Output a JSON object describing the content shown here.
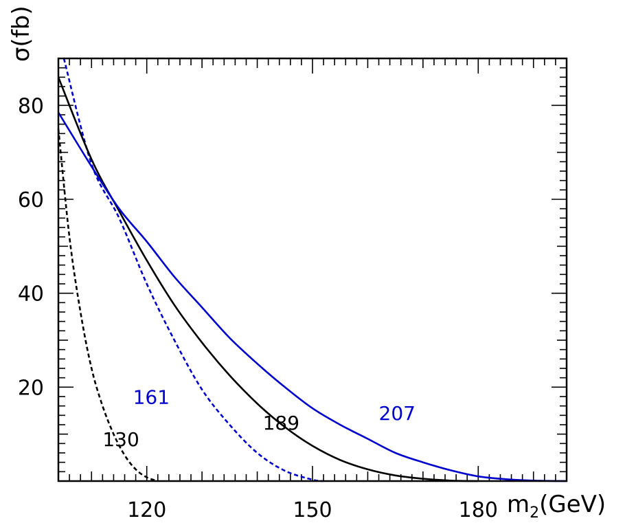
{
  "chart_data": {
    "type": "line",
    "xlabel_main": "m",
    "xlabel_sub": "2",
    "xlabel_unit": "(GeV)",
    "ylabel": "σ(fb)",
    "xlim": [
      104,
      196
    ],
    "ylim": [
      0,
      90
    ],
    "x_ticks": [
      120,
      150,
      180
    ],
    "y_ticks": [
      20,
      40,
      60,
      80
    ],
    "grid": false,
    "series": [
      {
        "label": "130",
        "color": "#000000",
        "dashed": true,
        "x": [
          104,
          106,
          108,
          110,
          112,
          114,
          116,
          118,
          120,
          122
        ],
        "y": [
          75,
          52,
          36,
          24,
          16,
          10,
          5.5,
          2.5,
          0.8,
          0
        ]
      },
      {
        "label": "161",
        "color": "#0000cc",
        "dashed": true,
        "x": [
          105,
          110,
          115,
          120,
          125,
          130,
          135,
          140,
          145,
          150,
          152
        ],
        "y": [
          90,
          67.5,
          56,
          42,
          30,
          19.5,
          12,
          6,
          2.2,
          0.3,
          0
        ]
      },
      {
        "label": "189",
        "color": "#000000",
        "dashed": false,
        "x": [
          104,
          110,
          115,
          120,
          125,
          130,
          135,
          140,
          145,
          150,
          155,
          160,
          165,
          170,
          175,
          180
        ],
        "y": [
          86,
          68.5,
          57.5,
          47,
          37.5,
          29.5,
          22.5,
          16.5,
          11.5,
          7.5,
          4.5,
          2.5,
          1.2,
          0.5,
          0.1,
          0
        ]
      },
      {
        "label": "207",
        "color": "#0000cc",
        "dashed": false,
        "x": [
          104,
          110,
          115,
          120,
          125,
          130,
          135,
          140,
          145,
          150,
          155,
          160,
          165,
          170,
          175,
          180,
          185,
          190,
          196
        ],
        "y": [
          78.5,
          67,
          58,
          51,
          43.5,
          37,
          30.5,
          25,
          20,
          15.5,
          12,
          9,
          6,
          4,
          2.3,
          1,
          0.4,
          0.1,
          0
        ]
      }
    ]
  }
}
